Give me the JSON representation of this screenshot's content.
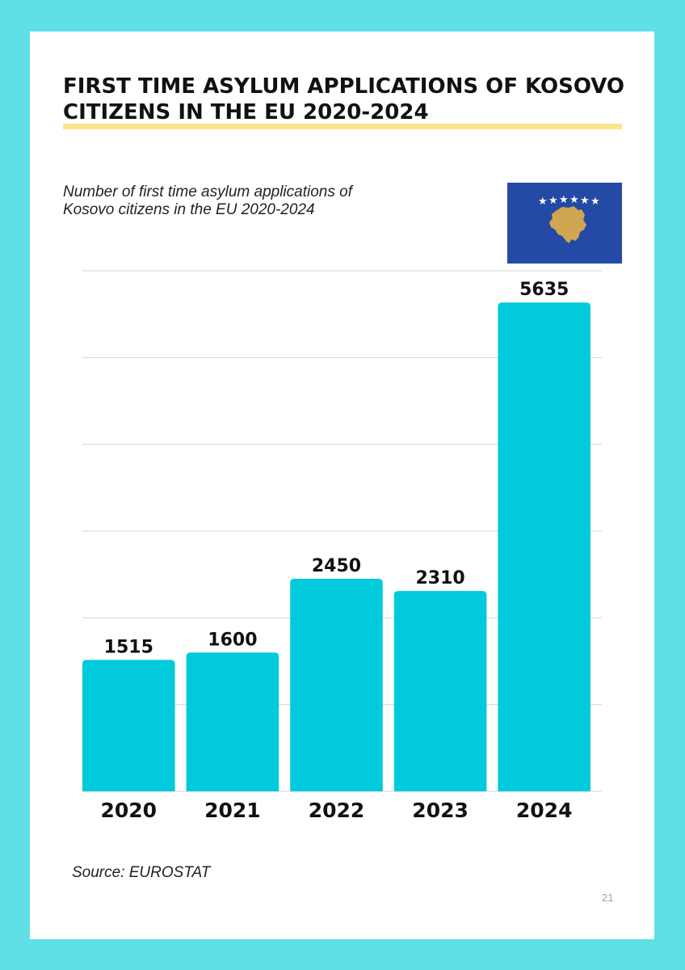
{
  "title_lines": [
    "FIRST TIME ASYLUM APPLICATIONS OF KOSOVO",
    "CITIZENS IN THE EU 2020-2024"
  ],
  "subtitle_lines": [
    "Number of first time asylum applications of",
    "Kosovo citizens in the EU 2020-2024"
  ],
  "flag": {
    "name": "Kosovo",
    "stars": 6,
    "field_color": "#244aa5",
    "map_color": "#d0a650",
    "star_color": "#ffffff"
  },
  "chart_data": {
    "type": "bar",
    "title": "Number of first time asylum applications of Kosovo citizens in the EU 2020-2024",
    "categories": [
      "2020",
      "2021",
      "2022",
      "2023",
      "2024"
    ],
    "values": [
      1515,
      1600,
      2450,
      2310,
      5635
    ],
    "value_labels": [
      "1515",
      "1600",
      "2450",
      "2310",
      "5635"
    ],
    "ylim": [
      0,
      6000
    ],
    "grid": true,
    "gridline_step": 1000,
    "bar_color": "#00cadc",
    "xlabel": "",
    "ylabel": ""
  },
  "source": "Source: EUROSTAT",
  "page_number": "21"
}
